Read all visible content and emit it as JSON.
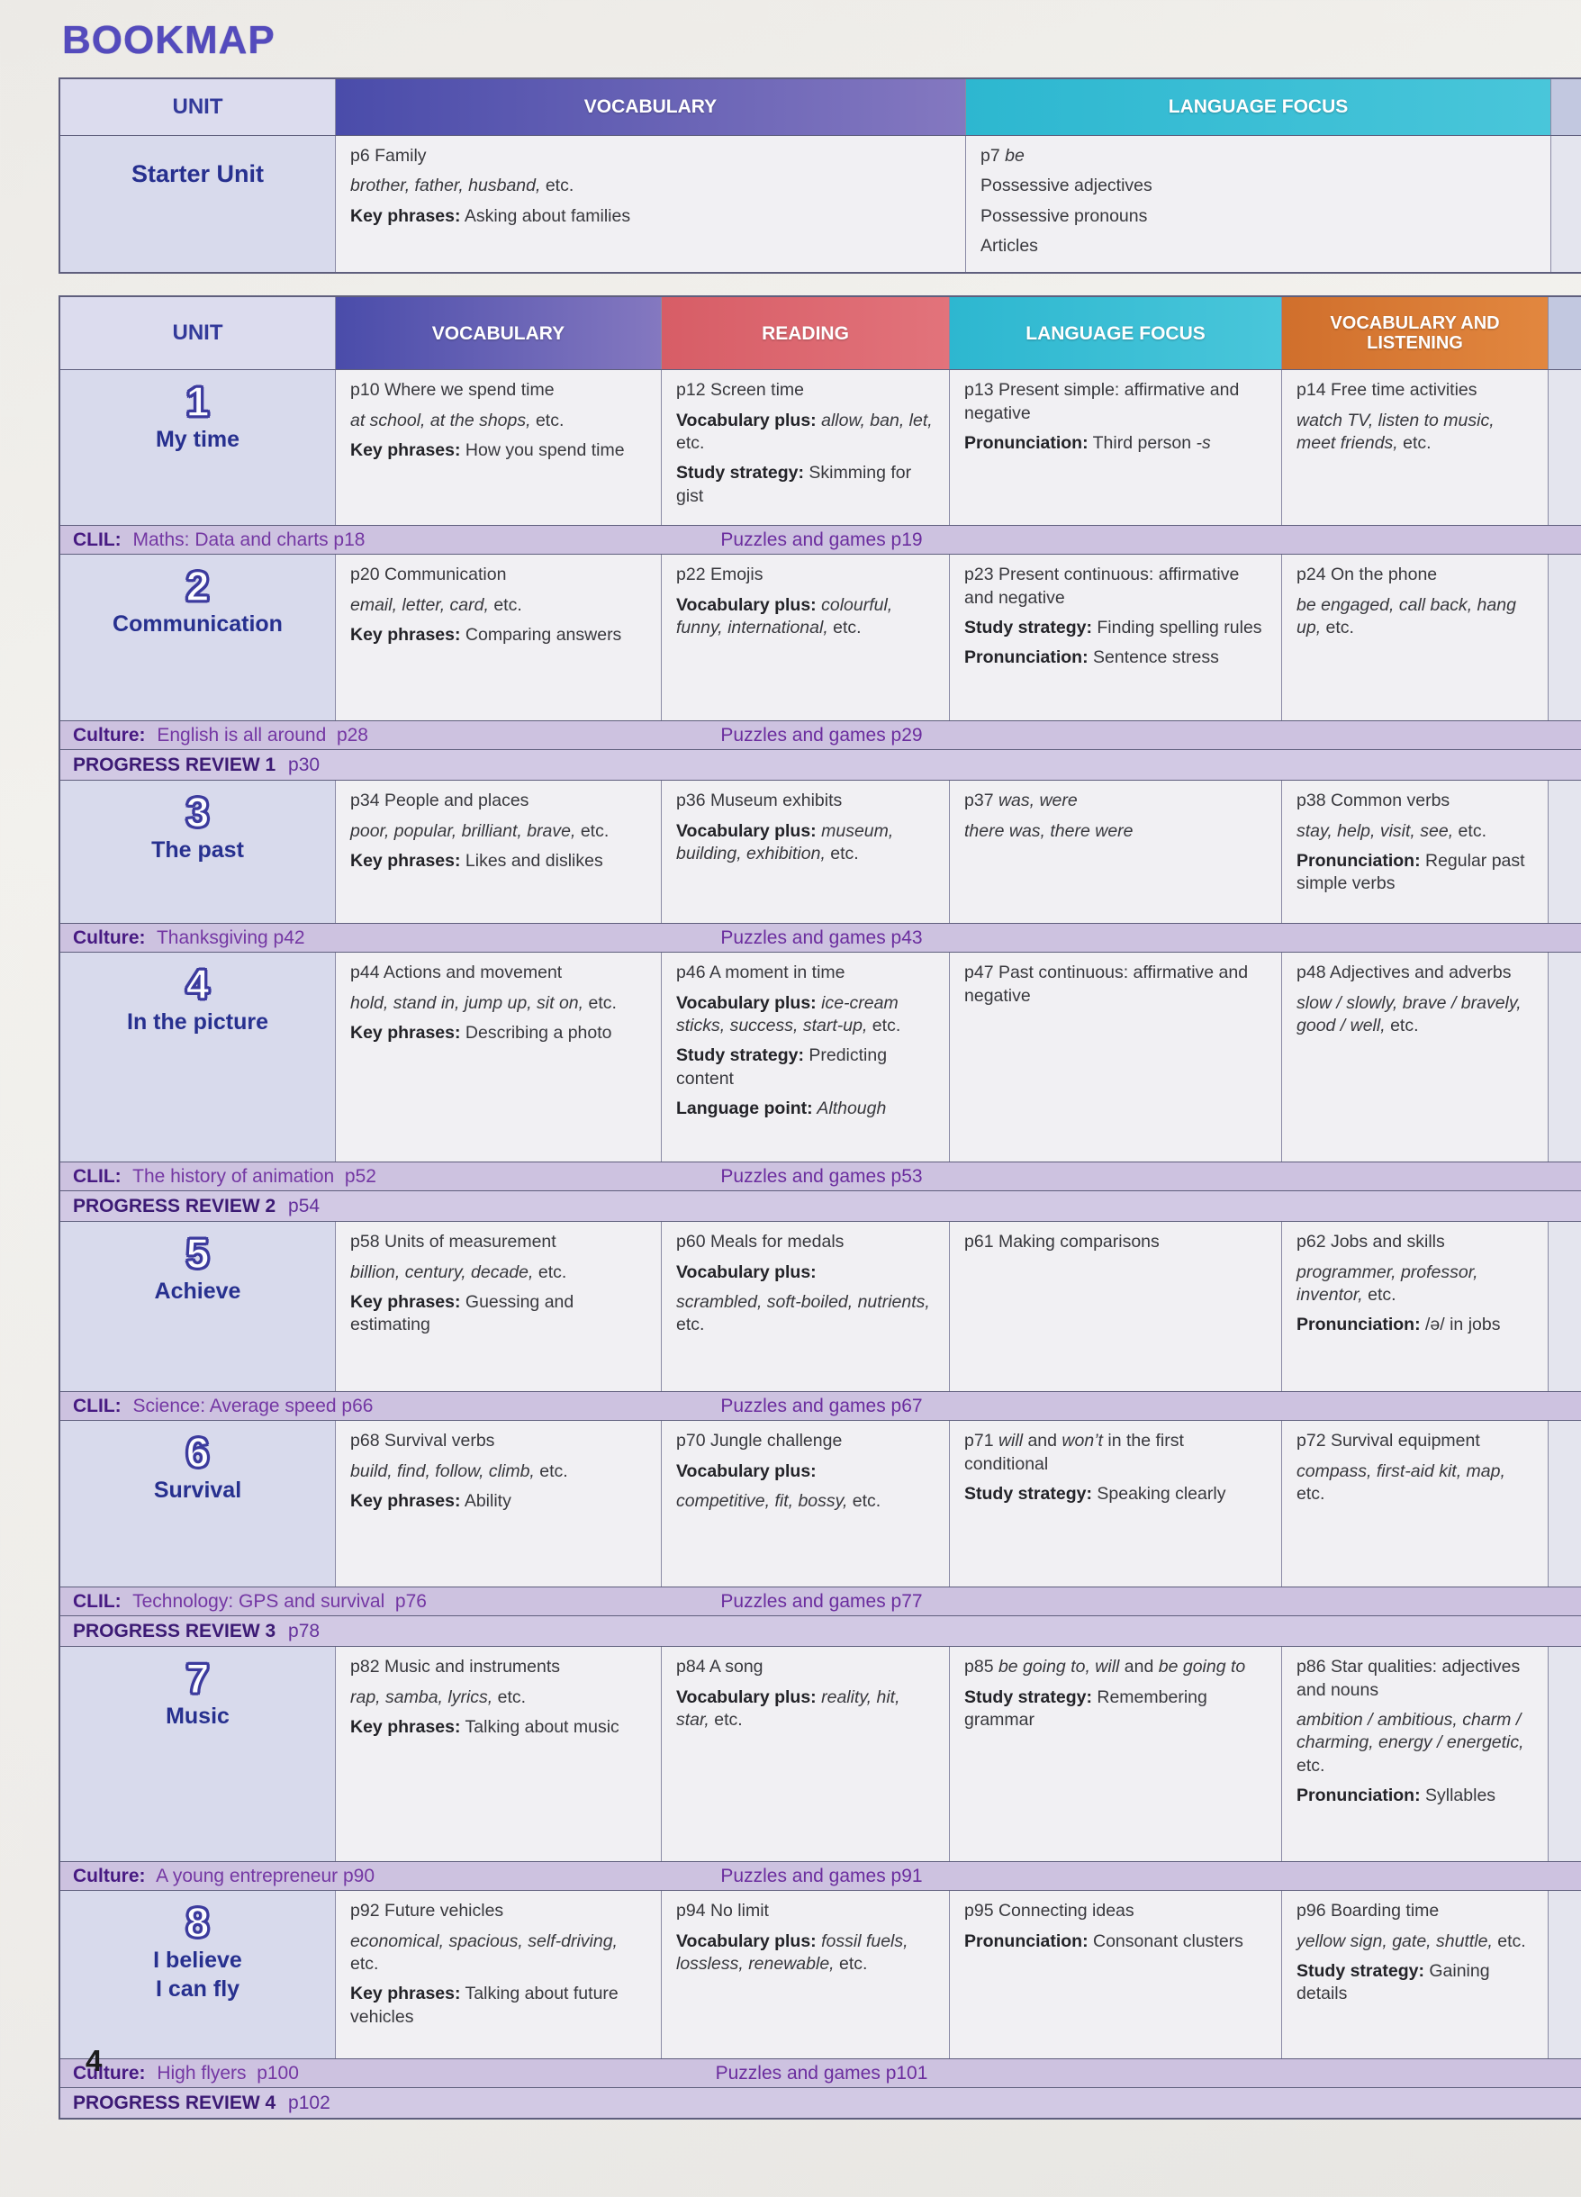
{
  "page": {
    "title": "BOOKMAP",
    "page_number": "4"
  },
  "colors": {
    "vocabulary_header_1": "#4a4caa",
    "vocabulary_header_2": "#8478c0",
    "reading_header": "#e2737b",
    "language_focus_header": "#49c6da",
    "vocab_listening_header": "#e2873f",
    "band_background": "#cdc2e0",
    "unit_column_background": "#d8daec",
    "unit_title_color": "#27308f",
    "band_text_color": "#7437a3"
  },
  "starter_table": {
    "headers": {
      "unit": "UNIT",
      "vocabulary": "VOCABULARY",
      "language_focus": "LANGUAGE FOCUS"
    },
    "unit_title": "Starter Unit",
    "cells": {
      "vocabulary": [
        [
          [
            "n",
            "p6 Family"
          ]
        ],
        [
          [
            "i",
            "brother, father, husband,"
          ],
          [
            "n",
            " etc."
          ]
        ],
        [
          [
            "b",
            "Key phrases:"
          ],
          [
            "n",
            " Asking about families"
          ]
        ]
      ],
      "language_focus": [
        [
          [
            "n",
            "p7 "
          ],
          [
            "i",
            "be"
          ]
        ],
        [
          [
            "n",
            "Possessive adjectives"
          ]
        ],
        [
          [
            "n",
            "Possessive pronouns"
          ]
        ],
        [
          [
            "n",
            "Articles"
          ]
        ]
      ]
    }
  },
  "main_table": {
    "headers": [
      "UNIT",
      "VOCABULARY",
      "READING",
      "LANGUAGE FOCUS",
      "VOCABULARY AND LISTENING"
    ],
    "rows": [
      {
        "type": "unit",
        "number": "1",
        "title": [
          "My time"
        ],
        "vocabulary": [
          [
            [
              "n",
              "p10 Where we spend time"
            ]
          ],
          [
            [
              "i",
              "at school, at the shops,"
            ],
            [
              "n",
              " etc."
            ]
          ],
          [
            [
              "b",
              "Key phrases:"
            ],
            [
              "n",
              " How you spend time"
            ]
          ]
        ],
        "reading": [
          [
            [
              "n",
              "p12 Screen time"
            ]
          ],
          [
            [
              "b",
              "Vocabulary plus:"
            ],
            [
              "i",
              " allow, ban, let,"
            ],
            [
              "n",
              " etc."
            ]
          ],
          [
            [
              "b",
              "Study strategy:"
            ],
            [
              "n",
              " Skimming for gist"
            ]
          ]
        ],
        "language_focus": [
          [
            [
              "n",
              "p13 Present simple: affirmative and negative"
            ]
          ],
          [
            [
              "b",
              "Pronunciation:"
            ],
            [
              "n",
              " Third person "
            ],
            [
              "i",
              "-s"
            ]
          ]
        ],
        "vocab_listening": [
          [
            [
              "n",
              "p14 Free time activities"
            ]
          ],
          [
            [
              "i",
              "watch TV, listen to music, meet friends,"
            ],
            [
              "n",
              " etc."
            ]
          ]
        ]
      },
      {
        "type": "band",
        "label": "CLIL:",
        "text": " Maths: Data and charts p18",
        "center": "Puzzles and games p19"
      },
      {
        "type": "unit",
        "number": "2",
        "title": [
          "Communication"
        ],
        "vocabulary": [
          [
            [
              "n",
              "p20 Communication"
            ]
          ],
          [
            [
              "i",
              "email, letter, card,"
            ],
            [
              "n",
              " etc."
            ]
          ],
          [
            [
              "b",
              "Key phrases:"
            ],
            [
              "n",
              " Comparing answers"
            ]
          ]
        ],
        "reading": [
          [
            [
              "n",
              "p22 Emojis"
            ]
          ],
          [
            [
              "b",
              "Vocabulary plus:"
            ],
            [
              "i",
              " colourful, funny, international,"
            ],
            [
              "n",
              " etc."
            ]
          ]
        ],
        "language_focus": [
          [
            [
              "n",
              "p23 Present continuous: affirmative and negative"
            ]
          ],
          [
            [
              "b",
              "Study strategy:"
            ],
            [
              "n",
              " Finding spelling rules"
            ]
          ],
          [
            [
              "b",
              "Pronunciation:"
            ],
            [
              "n",
              " Sentence stress"
            ]
          ]
        ],
        "vocab_listening": [
          [
            [
              "n",
              "p24 On the phone"
            ]
          ],
          [
            [
              "i",
              "be engaged, call back, hang up,"
            ],
            [
              "n",
              " etc."
            ]
          ]
        ]
      },
      {
        "type": "band",
        "label": "Culture:",
        "text": " English is all around  p28",
        "center": "Puzzles and games p29"
      },
      {
        "type": "review",
        "bold": "PROGRESS REVIEW 1",
        "rest": " p30"
      },
      {
        "type": "unit",
        "number": "3",
        "title": [
          "The past"
        ],
        "vocabulary": [
          [
            [
              "n",
              "p34 People and places"
            ]
          ],
          [
            [
              "i",
              "poor, popular, brilliant, brave,"
            ],
            [
              "n",
              " etc."
            ]
          ],
          [
            [
              "b",
              "Key phrases:"
            ],
            [
              "n",
              " Likes and dislikes"
            ]
          ]
        ],
        "reading": [
          [
            [
              "n",
              "p36 Museum exhibits"
            ]
          ],
          [
            [
              "b",
              "Vocabulary plus:"
            ],
            [
              "i",
              " museum, building, exhibition,"
            ],
            [
              "n",
              " etc."
            ]
          ]
        ],
        "language_focus": [
          [
            [
              "n",
              "p37 "
            ],
            [
              "i",
              "was, were"
            ]
          ],
          [
            [
              "i",
              "there was, there were"
            ]
          ]
        ],
        "vocab_listening": [
          [
            [
              "n",
              "p38 Common verbs"
            ]
          ],
          [
            [
              "i",
              "stay, help, visit, see,"
            ],
            [
              "n",
              " etc."
            ]
          ],
          [
            [
              "b",
              "Pronunciation:"
            ],
            [
              "n",
              " Regular past simple verbs"
            ]
          ]
        ]
      },
      {
        "type": "band",
        "label": "Culture:",
        "text": " Thanksgiving p42",
        "center": "Puzzles and games p43"
      },
      {
        "type": "unit",
        "number": "4",
        "title": [
          "In the picture"
        ],
        "vocabulary": [
          [
            [
              "n",
              "p44 Actions and movement"
            ]
          ],
          [
            [
              "i",
              "hold, stand in, jump up, sit on,"
            ],
            [
              "n",
              " etc."
            ]
          ],
          [
            [
              "b",
              "Key phrases:"
            ],
            [
              "n",
              " Describing a photo"
            ]
          ]
        ],
        "reading": [
          [
            [
              "n",
              "p46 A moment in time"
            ]
          ],
          [
            [
              "b",
              "Vocabulary plus:"
            ],
            [
              "i",
              " ice-cream sticks, success, start-up,"
            ],
            [
              "n",
              " etc."
            ]
          ],
          [
            [
              "b",
              "Study strategy:"
            ],
            [
              "n",
              " Predicting content"
            ]
          ],
          [
            [
              "b",
              "Language point:"
            ],
            [
              "i",
              " Although"
            ]
          ]
        ],
        "language_focus": [
          [
            [
              "n",
              "p47 Past continuous: affirmative and negative"
            ]
          ]
        ],
        "vocab_listening": [
          [
            [
              "n",
              "p48 Adjectives and adverbs"
            ]
          ],
          [
            [
              "i",
              "slow / slowly, brave / bravely, good / well,"
            ],
            [
              "n",
              " etc."
            ]
          ]
        ]
      },
      {
        "type": "band",
        "label": "CLIL:",
        "text": " The history of animation  p52",
        "center": "Puzzles and games p53"
      },
      {
        "type": "review",
        "bold": "PROGRESS REVIEW 2",
        "rest": " p54"
      },
      {
        "type": "unit",
        "number": "5",
        "title": [
          "Achieve"
        ],
        "vocabulary": [
          [
            [
              "n",
              "p58 Units of measurement"
            ]
          ],
          [
            [
              "i",
              "billion, century, decade,"
            ],
            [
              "n",
              " etc."
            ]
          ],
          [
            [
              "b",
              "Key phrases:"
            ],
            [
              "n",
              " Guessing and estimating"
            ]
          ]
        ],
        "reading": [
          [
            [
              "n",
              "p60 Meals for medals"
            ]
          ],
          [
            [
              "b",
              "Vocabulary plus:"
            ]
          ],
          [
            [
              "i",
              "scrambled, soft-boiled, nutrients,"
            ],
            [
              "n",
              " etc."
            ]
          ]
        ],
        "language_focus": [
          [
            [
              "n",
              "p61 Making comparisons"
            ]
          ]
        ],
        "vocab_listening": [
          [
            [
              "n",
              "p62 Jobs and skills"
            ]
          ],
          [
            [
              "i",
              "programmer, professor, inventor,"
            ],
            [
              "n",
              " etc."
            ]
          ],
          [
            [
              "b",
              "Pronunciation:"
            ],
            [
              "n",
              " /ə/ in jobs"
            ]
          ]
        ]
      },
      {
        "type": "band",
        "label": "CLIL:",
        "text": " Science: Average speed p66",
        "center": "Puzzles and games p67"
      },
      {
        "type": "unit",
        "number": "6",
        "title": [
          "Survival"
        ],
        "vocabulary": [
          [
            [
              "n",
              "p68 Survival verbs"
            ]
          ],
          [
            [
              "i",
              "build, find, follow, climb,"
            ],
            [
              "n",
              " etc."
            ]
          ],
          [
            [
              "b",
              "Key phrases:"
            ],
            [
              "n",
              " Ability"
            ]
          ]
        ],
        "reading": [
          [
            [
              "n",
              "p70 Jungle challenge"
            ]
          ],
          [
            [
              "b",
              "Vocabulary plus:"
            ]
          ],
          [
            [
              "i",
              "competitive, fit, bossy,"
            ],
            [
              "n",
              " etc."
            ]
          ]
        ],
        "language_focus": [
          [
            [
              "n",
              "p71 "
            ],
            [
              "i",
              "will"
            ],
            [
              "n",
              " and "
            ],
            [
              "i",
              "won’t"
            ],
            [
              "n",
              " in the first conditional"
            ]
          ],
          [
            [
              "b",
              "Study strategy:"
            ],
            [
              "n",
              " Speaking clearly"
            ]
          ]
        ],
        "vocab_listening": [
          [
            [
              "n",
              "p72 Survival equipment"
            ]
          ],
          [
            [
              "i",
              "compass, first-aid kit, map,"
            ],
            [
              "n",
              " etc."
            ]
          ]
        ]
      },
      {
        "type": "band",
        "label": "CLIL:",
        "text": " Technology: GPS and survival  p76",
        "center": "Puzzles and games p77"
      },
      {
        "type": "review",
        "bold": "PROGRESS REVIEW 3",
        "rest": " p78"
      },
      {
        "type": "unit",
        "number": "7",
        "title": [
          "Music"
        ],
        "vocabulary": [
          [
            [
              "n",
              "p82 Music and instruments"
            ]
          ],
          [
            [
              "i",
              "rap, samba, lyrics,"
            ],
            [
              "n",
              " etc."
            ]
          ],
          [
            [
              "b",
              "Key phrases:"
            ],
            [
              "n",
              " Talking about music"
            ]
          ]
        ],
        "reading": [
          [
            [
              "n",
              "p84 A song"
            ]
          ],
          [
            [
              "b",
              "Vocabulary plus:"
            ],
            [
              "i",
              " reality, hit, star,"
            ],
            [
              "n",
              " etc."
            ]
          ]
        ],
        "language_focus": [
          [
            [
              "n",
              "p85 "
            ],
            [
              "i",
              "be going to, will"
            ],
            [
              "n",
              " and "
            ],
            [
              "i",
              "be going to"
            ]
          ],
          [
            [
              "b",
              "Study strategy:"
            ],
            [
              "n",
              " Remembering grammar"
            ]
          ]
        ],
        "vocab_listening": [
          [
            [
              "n",
              "p86 Star qualities: adjectives and nouns"
            ]
          ],
          [
            [
              "i",
              "ambition / ambitious, charm / charming, energy / energetic,"
            ],
            [
              "n",
              " etc."
            ]
          ],
          [
            [
              "b",
              "Pronunciation:"
            ],
            [
              "n",
              " Syllables"
            ]
          ]
        ]
      },
      {
        "type": "band",
        "label": "Culture:",
        "text": " A young entrepreneur p90",
        "center": "Puzzles and games p91"
      },
      {
        "type": "unit",
        "number": "8",
        "title": [
          "I believe",
          "I can fly"
        ],
        "vocabulary": [
          [
            [
              "n",
              "p92 Future vehicles"
            ]
          ],
          [
            [
              "i",
              "economical, spacious, self-driving,"
            ],
            [
              "n",
              " etc."
            ]
          ],
          [
            [
              "b",
              "Key phrases:"
            ],
            [
              "n",
              " Talking about future vehicles"
            ]
          ]
        ],
        "reading": [
          [
            [
              "n",
              "p94 No limit"
            ]
          ],
          [
            [
              "b",
              "Vocabulary plus:"
            ],
            [
              "i",
              " fossil fuels, lossless, renewable,"
            ],
            [
              "n",
              " etc."
            ]
          ]
        ],
        "language_focus": [
          [
            [
              "n",
              "p95 Connecting ideas"
            ]
          ],
          [
            [
              "b",
              "Pronunciation:"
            ],
            [
              "n",
              " Consonant clusters"
            ]
          ]
        ],
        "vocab_listening": [
          [
            [
              "n",
              "p96 Boarding time"
            ]
          ],
          [
            [
              "i",
              "yellow sign, gate, shuttle,"
            ],
            [
              "n",
              " etc."
            ]
          ],
          [
            [
              "b",
              "Study strategy:"
            ],
            [
              "n",
              " Gaining details"
            ]
          ]
        ]
      },
      {
        "type": "band",
        "label": "Culture:",
        "text": " High flyers  p100",
        "center": "Puzzles and games p101"
      },
      {
        "type": "review",
        "bold": "PROGRESS REVIEW 4",
        "rest": " p102"
      }
    ]
  }
}
